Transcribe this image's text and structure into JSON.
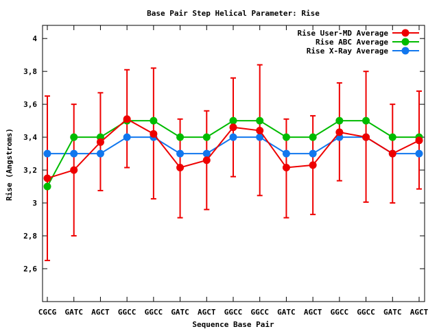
{
  "chart_data": {
    "type": "line",
    "title": "Base Pair Step Helical Parameter: Rise",
    "xlabel": "Sequence Base Pair",
    "ylabel": "Rise (Angstroms)",
    "categories": [
      "CGCG",
      "GATC",
      "AGCT",
      "GGCC",
      "GGCC",
      "GATC",
      "AGCT",
      "GGCC",
      "GGCC",
      "GATC",
      "AGCT",
      "GGCC",
      "GGCC",
      "GATC",
      "AGCT"
    ],
    "ylim": [
      2.4,
      4.08
    ],
    "yticks": [
      2.6,
      2.8,
      3,
      3.2,
      3.4,
      3.6,
      3.8,
      4
    ],
    "ytick_labels": [
      "2,6",
      "2,8",
      "3",
      "3,2",
      "3,4",
      "3,6",
      "3,8",
      "4"
    ],
    "grid": false,
    "legend_position": "top-right",
    "series": [
      {
        "name": "Rise User-MD Average",
        "color": "#ee0000",
        "values": [
          3.15,
          3.2,
          3.37,
          3.51,
          3.42,
          3.215,
          3.26,
          3.46,
          3.44,
          3.215,
          3.23,
          3.43,
          3.4,
          3.3,
          3.38
        ],
        "error_low": [
          2.65,
          2.8,
          3.075,
          3.215,
          3.025,
          2.91,
          2.96,
          3.16,
          3.045,
          2.91,
          2.93,
          3.135,
          3.005,
          3.0,
          3.085
        ],
        "error_high": [
          3.65,
          3.6,
          3.67,
          3.81,
          3.82,
          3.51,
          3.56,
          3.76,
          3.84,
          3.51,
          3.53,
          3.73,
          3.8,
          3.6,
          3.68
        ]
      },
      {
        "name": "Rise ABC Average",
        "color": "#00bb00",
        "values": [
          3.1,
          3.4,
          3.4,
          3.5,
          3.5,
          3.4,
          3.4,
          3.5,
          3.5,
          3.4,
          3.4,
          3.5,
          3.5,
          3.4,
          3.4
        ]
      },
      {
        "name": "Rise X-Ray Average",
        "color": "#1177ee",
        "values": [
          3.3,
          3.3,
          3.3,
          3.4,
          3.4,
          3.3,
          3.3,
          3.4,
          3.4,
          3.3,
          3.3,
          3.4,
          3.4,
          3.3,
          3.3
        ]
      }
    ]
  }
}
